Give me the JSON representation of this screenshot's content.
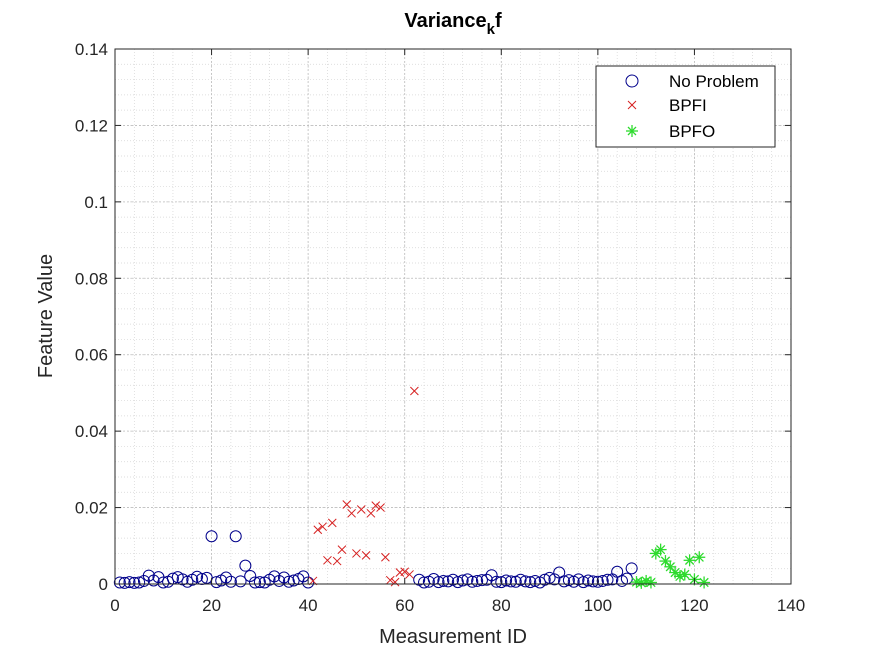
{
  "chart_data": {
    "type": "scatter",
    "title_main": "Variance",
    "title_sub": "k",
    "title_end": "f",
    "xlabel": "Measurement ID",
    "ylabel": "Feature Value",
    "xlim": [
      0,
      140
    ],
    "ylim": [
      0,
      0.14
    ],
    "xticks": [
      0,
      20,
      40,
      60,
      80,
      100,
      120,
      140
    ],
    "xtick_labels": [
      "0",
      "20",
      "40",
      "60",
      "80",
      "100",
      "120",
      "140"
    ],
    "yticks": [
      0,
      0.02,
      0.04,
      0.06,
      0.08,
      0.1,
      0.12,
      0.14
    ],
    "ytick_labels": [
      "0",
      "0.02",
      "0.04",
      "0.06",
      "0.08",
      "0.1",
      "0.12",
      "0.14"
    ],
    "grid": "major and minor",
    "legend_position": "top-right",
    "series": [
      {
        "name": "No Problem",
        "marker": "circle",
        "color": "#00008B",
        "points": [
          [
            1,
            0.0004
          ],
          [
            2,
            0.0003
          ],
          [
            3,
            0.0005
          ],
          [
            4,
            0.0003
          ],
          [
            5,
            0.0004
          ],
          [
            6,
            0.0008
          ],
          [
            7,
            0.0022
          ],
          [
            8,
            0.0009
          ],
          [
            9,
            0.0018
          ],
          [
            10,
            0.0004
          ],
          [
            11,
            0.0006
          ],
          [
            12,
            0.0014
          ],
          [
            13,
            0.0018
          ],
          [
            14,
            0.0012
          ],
          [
            15,
            0.0006
          ],
          [
            16,
            0.0011
          ],
          [
            17,
            0.0019
          ],
          [
            18,
            0.0013
          ],
          [
            19,
            0.0016
          ],
          [
            20,
            0.0125
          ],
          [
            21,
            0.0005
          ],
          [
            22,
            0.0009
          ],
          [
            23,
            0.0017
          ],
          [
            24,
            0.0006
          ],
          [
            25,
            0.0125
          ],
          [
            26,
            0.0007
          ],
          [
            27,
            0.0048
          ],
          [
            28,
            0.0021
          ],
          [
            29,
            0.0004
          ],
          [
            30,
            0.0005
          ],
          [
            31,
            0.0004
          ],
          [
            32,
            0.0011
          ],
          [
            33,
            0.002
          ],
          [
            34,
            0.0008
          ],
          [
            35,
            0.0017
          ],
          [
            36,
            0.0006
          ],
          [
            37,
            0.0009
          ],
          [
            38,
            0.0013
          ],
          [
            39,
            0.002
          ],
          [
            40,
            0.0004
          ],
          [
            63,
            0.0011
          ],
          [
            64,
            0.0004
          ],
          [
            65,
            0.0006
          ],
          [
            66,
            0.0013
          ],
          [
            67,
            0.0005
          ],
          [
            68,
            0.0008
          ],
          [
            69,
            0.0007
          ],
          [
            70,
            0.0011
          ],
          [
            71,
            0.0005
          ],
          [
            72,
            0.0009
          ],
          [
            73,
            0.0012
          ],
          [
            74,
            0.0006
          ],
          [
            75,
            0.0008
          ],
          [
            76,
            0.001
          ],
          [
            77,
            0.0011
          ],
          [
            78,
            0.0023
          ],
          [
            79,
            0.0006
          ],
          [
            80,
            0.0005
          ],
          [
            81,
            0.0009
          ],
          [
            82,
            0.0007
          ],
          [
            83,
            0.0006
          ],
          [
            84,
            0.0011
          ],
          [
            85,
            0.0007
          ],
          [
            86,
            0.0005
          ],
          [
            87,
            0.0008
          ],
          [
            88,
            0.0004
          ],
          [
            89,
            0.0011
          ],
          [
            90,
            0.0016
          ],
          [
            91,
            0.0012
          ],
          [
            92,
            0.003
          ],
          [
            93,
            0.0007
          ],
          [
            94,
            0.001
          ],
          [
            95,
            0.0006
          ],
          [
            96,
            0.0012
          ],
          [
            97,
            0.0005
          ],
          [
            98,
            0.0009
          ],
          [
            99,
            0.0007
          ],
          [
            100,
            0.0006
          ],
          [
            101,
            0.0008
          ],
          [
            102,
            0.0011
          ],
          [
            103,
            0.0012
          ],
          [
            104,
            0.0032
          ],
          [
            105,
            0.0008
          ],
          [
            106,
            0.0014
          ],
          [
            107,
            0.0041
          ]
        ]
      },
      {
        "name": "BPFI",
        "marker": "x",
        "color": "#D62020",
        "points": [
          [
            41,
            0.0008
          ],
          [
            42,
            0.0142
          ],
          [
            43,
            0.015
          ],
          [
            44,
            0.0062
          ],
          [
            45,
            0.016
          ],
          [
            46,
            0.006
          ],
          [
            47,
            0.009
          ],
          [
            48,
            0.0208
          ],
          [
            49,
            0.0185
          ],
          [
            50,
            0.008
          ],
          [
            51,
            0.0195
          ],
          [
            52,
            0.0075
          ],
          [
            53,
            0.0185
          ],
          [
            54,
            0.0205
          ],
          [
            55,
            0.02
          ],
          [
            56,
            0.007
          ],
          [
            57,
            0.001
          ],
          [
            58,
            0.0005
          ],
          [
            59,
            0.003
          ],
          [
            60,
            0.0032
          ],
          [
            61,
            0.0025
          ],
          [
            62,
            0.0505
          ]
        ]
      },
      {
        "name": "BPFO",
        "marker": "asterisk",
        "color": "#2EDB2E",
        "points": [
          [
            108,
            0.0005
          ],
          [
            109,
            0.0003
          ],
          [
            110,
            0.0008
          ],
          [
            111,
            0.0004
          ],
          [
            112,
            0.008
          ],
          [
            113,
            0.009
          ],
          [
            114,
            0.006
          ],
          [
            115,
            0.0045
          ],
          [
            116,
            0.003
          ],
          [
            117,
            0.002
          ],
          [
            118,
            0.0025
          ],
          [
            119,
            0.0062
          ],
          [
            120,
            0.0012
          ],
          [
            121,
            0.007
          ],
          [
            122,
            0.0004
          ]
        ]
      }
    ]
  }
}
